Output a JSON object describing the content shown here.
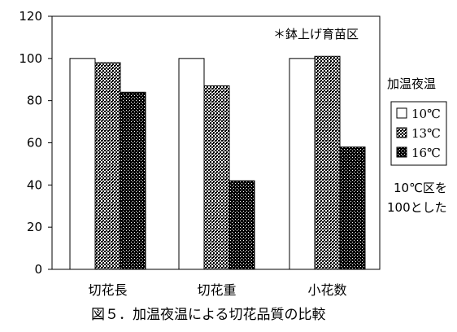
{
  "chart_data": {
    "type": "bar",
    "title": "",
    "caption": "図５．加温夜温による切花品質の比較",
    "annotation": "＊鉢上げ育苗区",
    "legend_title": "加温夜温",
    "legend_placement": "right",
    "note_lines": [
      "10℃区を",
      "100とした"
    ],
    "xlabel": "",
    "ylabel": "",
    "ylim": [
      0,
      120
    ],
    "yticks": [
      0,
      20,
      40,
      60,
      80,
      100,
      120
    ],
    "grid": false,
    "categories": [
      "切花長",
      "切花重",
      "小花数"
    ],
    "series": [
      {
        "name": "10℃",
        "values": [
          100,
          100,
          100
        ],
        "fill": "#ffffff"
      },
      {
        "name": "13℃",
        "values": [
          98,
          87,
          101
        ],
        "fill": "dense-check"
      },
      {
        "name": "16℃",
        "values": [
          84,
          42,
          58
        ],
        "fill": "dark-dots"
      }
    ]
  }
}
